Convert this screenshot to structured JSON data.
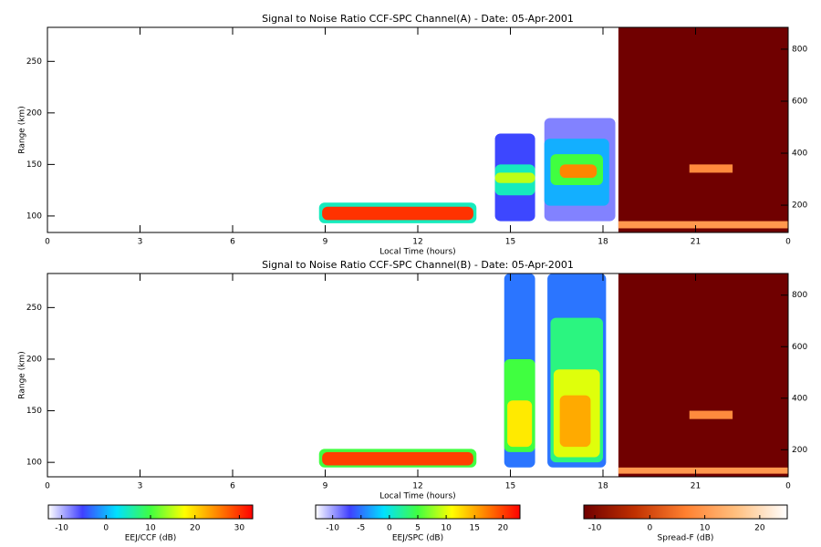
{
  "chart_data": [
    {
      "type": "heatmap",
      "title": "Signal to Noise Ratio CCF-SPC Channel(A) - Date: 05-Apr-2001",
      "xlabel": "Local Time (hours)",
      "ylabel": "Range (km)",
      "xlim": [
        0,
        24
      ],
      "xticks": [
        0,
        3,
        6,
        9,
        12,
        15,
        18,
        21,
        {
          "value": 24,
          "label": "0"
        }
      ],
      "ylim": [
        84,
        283
      ],
      "yticks": [
        100,
        150,
        200,
        250
      ],
      "y2lim": [
        95,
        884
      ],
      "y2ticks": [
        200,
        400,
        600,
        800
      ],
      "series": [
        {
          "colors": [
            "#ffffff",
            "#4040ff",
            "#00e0ff",
            "#40ff40",
            "#ffff00",
            "#ff8000",
            "#ff0000"
          ],
          "clim": [
            -13,
            33
          ],
          "blobs": [
            {
              "x": [
                8.8,
                13.9
              ],
              "y": [
                93,
                113
              ],
              "value": 5
            },
            {
              "x": [
                8.9,
                13.8
              ],
              "y": [
                96,
                109
              ],
              "value": 30
            },
            {
              "x": [
                14.5,
                15.8
              ],
              "y": [
                95,
                180
              ],
              "value": -5
            },
            {
              "x": [
                14.5,
                15.8
              ],
              "y": [
                120,
                150
              ],
              "value": 5
            },
            {
              "x": [
                14.5,
                15.8
              ],
              "y": [
                132,
                142
              ],
              "value": 15
            },
            {
              "x": [
                16.1,
                18.4
              ],
              "y": [
                95,
                195
              ],
              "value": -8
            },
            {
              "x": [
                16.1,
                18.2
              ],
              "y": [
                110,
                175
              ],
              "value": 0
            },
            {
              "x": [
                16.3,
                18.0
              ],
              "y": [
                130,
                160
              ],
              "value": 10
            },
            {
              "x": [
                16.6,
                17.8
              ],
              "y": [
                137,
                150
              ],
              "value": 25
            }
          ]
        },
        {
          "colors": [
            "#700000",
            "#c03000",
            "#ff8030",
            "#ffc080",
            "#ffffff"
          ],
          "clim": [
            -12,
            25
          ],
          "blobs": [
            {
              "x": [
                18.5,
                24
              ],
              "y": [
                84,
                283
              ],
              "value": -12
            },
            {
              "x": [
                18.5,
                24
              ],
              "y": [
                88,
                95
              ],
              "value": 10
            },
            {
              "x": [
                20.8,
                22.2
              ],
              "y": [
                142,
                150
              ],
              "value": 8
            }
          ]
        }
      ]
    },
    {
      "type": "heatmap",
      "title": "Signal to Noise Ratio CCF-SPC Channel(B) - Date: 05-Apr-2001",
      "xlabel": "Local Time (hours)",
      "ylabel": "Range (km)",
      "xlim": [
        0,
        24
      ],
      "xticks": [
        0,
        3,
        6,
        9,
        12,
        15,
        18,
        21,
        {
          "value": 24,
          "label": "0"
        }
      ],
      "ylim": [
        86,
        283
      ],
      "yticks": [
        100,
        150,
        200,
        250
      ],
      "y2lim": [
        95,
        884
      ],
      "y2ticks": [
        200,
        400,
        600,
        800
      ],
      "series": [
        {
          "colors": [
            "#ffffff",
            "#4040ff",
            "#00e0ff",
            "#40ff40",
            "#ffff00",
            "#ff8000",
            "#ff0000"
          ],
          "clim": [
            -13,
            23
          ],
          "blobs": [
            {
              "x": [
                8.8,
                13.9
              ],
              "y": [
                95,
                113
              ],
              "value": 5
            },
            {
              "x": [
                8.9,
                13.8
              ],
              "y": [
                97,
                110
              ],
              "value": 20
            },
            {
              "x": [
                14.8,
                15.8
              ],
              "y": [
                95,
                283
              ],
              "value": -5
            },
            {
              "x": [
                14.8,
                15.8
              ],
              "y": [
                110,
                200
              ],
              "value": 5
            },
            {
              "x": [
                14.9,
                15.7
              ],
              "y": [
                115,
                160
              ],
              "value": 12
            },
            {
              "x": [
                16.2,
                18.1
              ],
              "y": [
                95,
                283
              ],
              "value": -5
            },
            {
              "x": [
                16.3,
                18.0
              ],
              "y": [
                100,
                240
              ],
              "value": 3
            },
            {
              "x": [
                16.4,
                17.9
              ],
              "y": [
                105,
                190
              ],
              "value": 10
            },
            {
              "x": [
                16.6,
                17.6
              ],
              "y": [
                115,
                165
              ],
              "value": 15
            }
          ]
        },
        {
          "colors": [
            "#700000",
            "#c03000",
            "#ff8030",
            "#ffc080",
            "#ffffff"
          ],
          "clim": [
            -12,
            25
          ],
          "blobs": [
            {
              "x": [
                18.5,
                24
              ],
              "y": [
                86,
                283
              ],
              "value": -12
            },
            {
              "x": [
                18.5,
                24
              ],
              "y": [
                89,
                95
              ],
              "value": 10
            },
            {
              "x": [
                20.8,
                22.2
              ],
              "y": [
                142,
                150
              ],
              "value": 8
            }
          ]
        }
      ]
    },
    {
      "type": "colorbar",
      "label": "EEJ/CCF (dB)",
      "xlim": [
        -13,
        33
      ],
      "xticks": [
        -10,
        0,
        10,
        20,
        30
      ],
      "colors": [
        "#ffffff",
        "#4040ff",
        "#00e0ff",
        "#40ff40",
        "#ffff00",
        "#ff8000",
        "#ff0000"
      ]
    },
    {
      "type": "colorbar",
      "label": "EEJ/SPC (dB)",
      "xlim": [
        -13,
        23
      ],
      "xticks": [
        -10,
        -5,
        0,
        5,
        10,
        15,
        20
      ],
      "colors": [
        "#ffffff",
        "#4040ff",
        "#00e0ff",
        "#40ff40",
        "#ffff00",
        "#ff8000",
        "#ff0000"
      ]
    },
    {
      "type": "colorbar",
      "label": "Spread-F (dB)",
      "xlim": [
        -12,
        25
      ],
      "xticks": [
        -10,
        0,
        10,
        20
      ],
      "colors": [
        "#700000",
        "#c03000",
        "#ff8030",
        "#ffc080",
        "#ffffff"
      ]
    }
  ]
}
